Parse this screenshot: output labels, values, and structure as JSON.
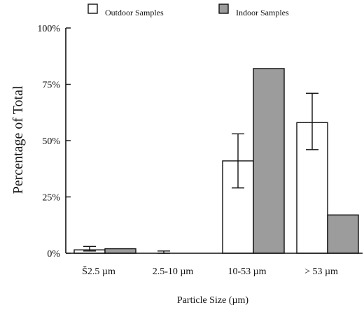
{
  "chart_data": {
    "type": "bar",
    "categories": [
      "Š2.5 µm",
      "2.5-10 µm",
      "10-53 µm",
      "> 53 µm"
    ],
    "series": [
      {
        "name": "Outdoor Samples",
        "color": "#ffffff",
        "values": [
          1.5,
          0,
          41,
          58
        ],
        "error": [
          [
            1,
            3
          ],
          [
            0,
            1
          ],
          [
            29,
            53
          ],
          [
            46,
            71
          ]
        ]
      },
      {
        "name": "Indoor Samples",
        "color": "#9c9c9c",
        "values": [
          2,
          0,
          82,
          17
        ],
        "error": null
      }
    ],
    "title": "",
    "xlabel": "Particle Size (µm)",
    "ylabel": "Percentage of Total",
    "ylim": [
      0,
      100
    ],
    "yticks": [
      0,
      25,
      50,
      75,
      100
    ],
    "ytick_labels": [
      "0%",
      "25%",
      "50%",
      "75%",
      "100%"
    ],
    "legend_position": "top",
    "grid": false
  }
}
